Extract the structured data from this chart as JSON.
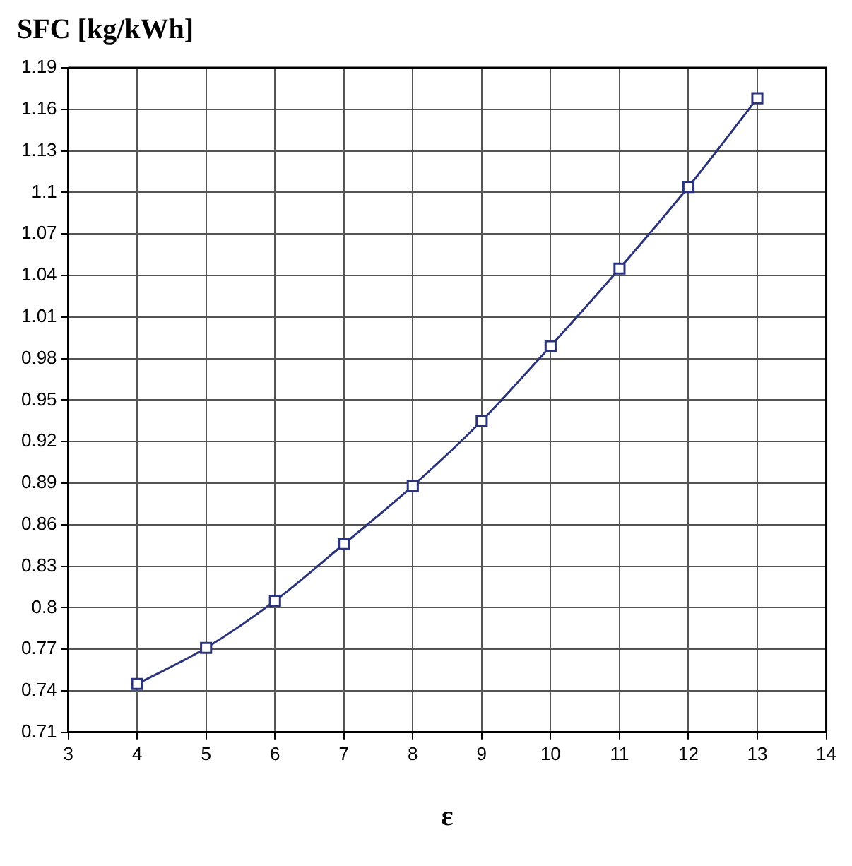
{
  "chart_data": {
    "type": "line",
    "title": "SFC [kg/kWh]",
    "xlabel": "ε",
    "x": [
      4,
      5,
      6,
      7,
      8,
      9,
      10,
      11,
      12,
      13
    ],
    "series": [
      {
        "color": "#2b347a",
        "values": [
          0.745,
          0.771,
          0.805,
          0.846,
          0.888,
          0.935,
          0.989,
          1.045,
          1.104,
          1.168
        ]
      }
    ],
    "xlim": [
      3,
      14
    ],
    "xticks": [
      3,
      4,
      5,
      6,
      7,
      8,
      9,
      10,
      11,
      12,
      13,
      14
    ],
    "ylim": [
      0.71,
      1.19
    ],
    "yticks": [
      0.71,
      0.74,
      0.77,
      0.8,
      0.83,
      0.86,
      0.89,
      0.92,
      0.95,
      0.98,
      1.01,
      1.04,
      1.07,
      1.1,
      1.13,
      1.16,
      1.19
    ],
    "grid": true,
    "legend": false,
    "marker": "square",
    "line_style": "solid"
  }
}
